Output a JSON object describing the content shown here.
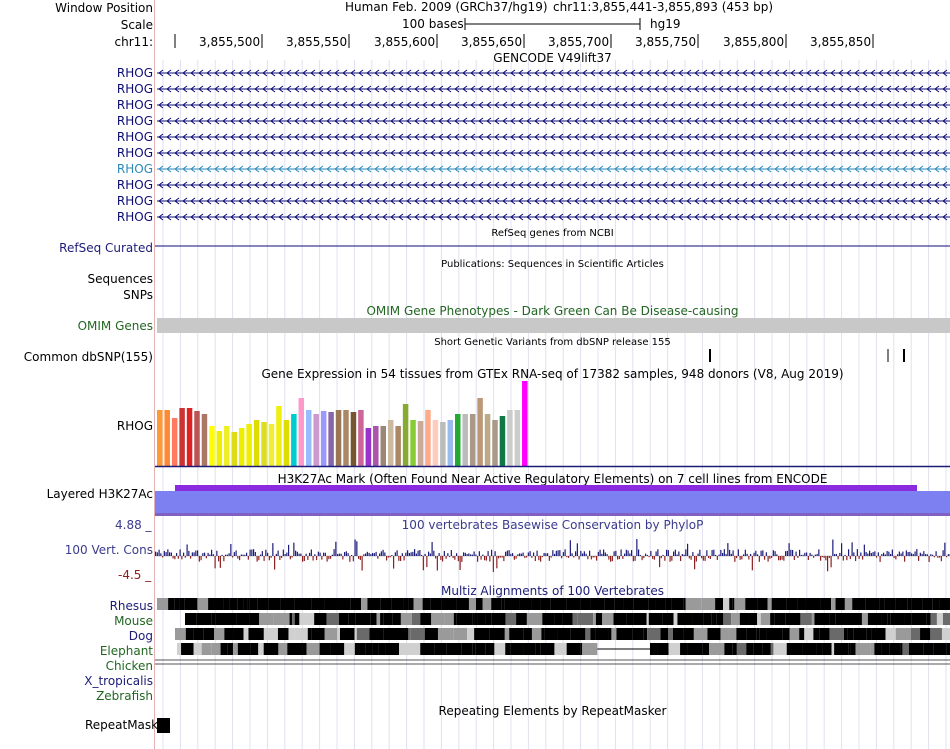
{
  "header": {
    "window_position_label": "Window Position",
    "scale_label": "Scale",
    "chrom_label": "chr11:",
    "assembly": "Human Feb. 2009 (GRCh37/hg19)",
    "position": "chr11:3,855,441-3,855,893 (453 bp)",
    "scale_text": "100 bases",
    "db": "hg19",
    "ticks": [
      "3,855,500",
      "3,855,550",
      "3,855,600",
      "3,855,650",
      "3,855,700",
      "3,855,750",
      "3,855,800",
      "3,855,850"
    ]
  },
  "gencode": {
    "title": "GENCODE V49lift37",
    "genes": [
      "RHOG",
      "RHOG",
      "RHOG",
      "RHOG",
      "RHOG",
      "RHOG",
      "RHOG",
      "RHOG",
      "RHOG",
      "RHOG"
    ],
    "highlight_color": "#2b8ab8",
    "gene_color": "#0c0c78"
  },
  "refseq": {
    "title": "RefSeq genes from NCBI",
    "label": "RefSeq Curated"
  },
  "publications": {
    "title": "Publications: Sequences in Scientific Articles",
    "label": "Sequences"
  },
  "snps_label": "SNPs",
  "omim": {
    "title": "OMIM Gene Phenotypes - Dark Green Can Be Disease-causing",
    "label": "OMIM Genes",
    "color": "#226622"
  },
  "dbsnp": {
    "title": "Short Genetic Variants from dbSNP release 155",
    "label": "Common dbSNP(155)"
  },
  "gtex": {
    "title": "Gene Expression in 54 tissues from GTEx RNA-seq of 17382 samples, 948 donors (V8, Aug 2019)",
    "label": "RHOG"
  },
  "h3k27ac": {
    "title": "H3K27Ac Mark (Often Found Near Active Regulatory Elements) on 7 cell lines from ENCODE",
    "label": "Layered H3K27Ac"
  },
  "conservation": {
    "title": "100 vertebrates Basewise Conservation by PhyloP",
    "label": "100 Vert. Cons",
    "max": "4.88 _",
    "min": "-4.5 _",
    "pos_color": "#1c1c78",
    "neg_color": "#8c2020"
  },
  "multiz": {
    "title": "Multiz Alignments of 100 Vertebrates",
    "species": [
      {
        "name": "Rhesus",
        "color": "#1c1c78"
      },
      {
        "name": "Mouse",
        "color": "#226622"
      },
      {
        "name": "Dog",
        "color": "#1c1c78"
      },
      {
        "name": "Elephant",
        "color": "#226622"
      },
      {
        "name": "Chicken",
        "color": "#226622"
      },
      {
        "name": "X_tropicalis",
        "color": "#1c1c78"
      },
      {
        "name": "Zebrafish",
        "color": "#226622"
      }
    ]
  },
  "repeatmasker": {
    "title": "Repeating Elements by RepeatMasker",
    "label": "RepeatMasker"
  }
}
